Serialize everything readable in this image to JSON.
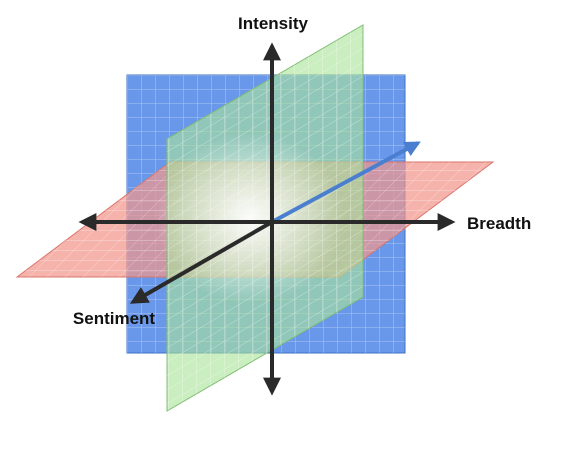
{
  "diagram": {
    "axis_labels": {
      "vertical": "Intensity",
      "horizontal": "Breadth",
      "depth": "Sentiment"
    },
    "colors": {
      "blue_plane": "#4f86e6",
      "green_plane": "#a9e39a",
      "red_plane": "#f1968c",
      "axis": "#2a2a2a",
      "depth_back_arrow": "#4a7fd0",
      "label_text": "#111111",
      "background": "#ffffff"
    }
  }
}
